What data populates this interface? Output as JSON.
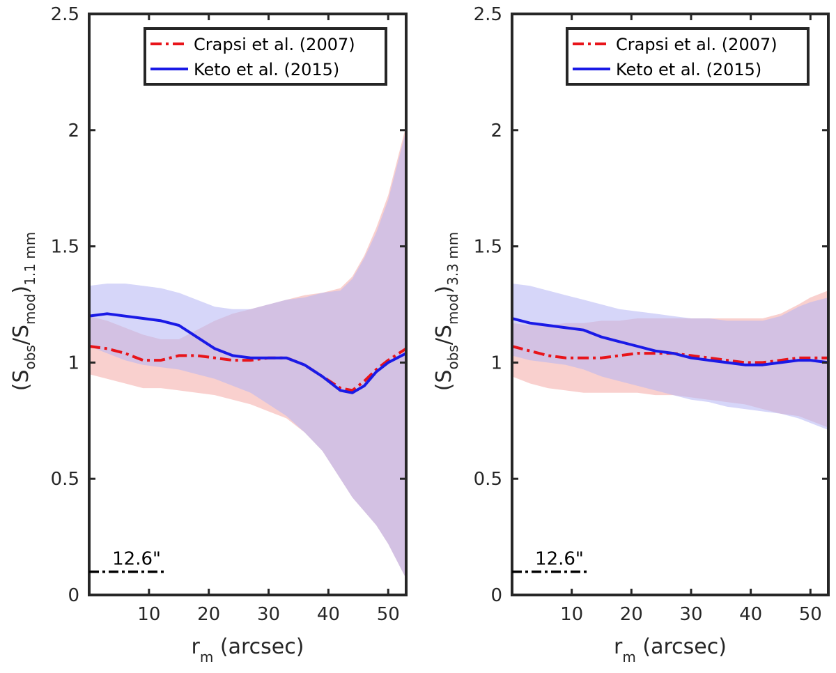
{
  "chart_data": [
    {
      "type": "line",
      "panel": "left",
      "xlabel_main": "r",
      "xlabel_sub": "m",
      "xlabel_rest": " (arcsec)",
      "ylabel_open": "(S",
      "ylabel_sub1": "obs",
      "ylabel_slash": "/S",
      "ylabel_sub2": "mod",
      "ylabel_close": ")",
      "ylabel_sub3": "1.1 mm",
      "xlim": [
        0,
        53
      ],
      "ylim": [
        0,
        2.5
      ],
      "xticks": [
        10,
        20,
        30,
        40,
        50
      ],
      "yticks": [
        0,
        0.5,
        1,
        1.5,
        2,
        2.5
      ],
      "ytick_labels": [
        "0",
        "0.5",
        "1",
        "1.5",
        "2",
        "2.5"
      ],
      "legend_position": "top-right",
      "scale_bar": {
        "label": "12.6\"",
        "x_start": 0,
        "x_end": 12.6,
        "y": 0.1
      },
      "series": [
        {
          "name": "Crapsi et al. (2007)",
          "style": "dash-dot",
          "color": "#e8141a",
          "band_color": "#f4a9a5",
          "x": [
            0,
            3,
            6,
            9,
            12,
            15,
            18,
            21,
            24,
            27,
            30,
            33,
            36,
            39,
            42,
            44,
            46,
            48,
            50,
            53
          ],
          "y": [
            1.07,
            1.06,
            1.04,
            1.01,
            1.01,
            1.03,
            1.03,
            1.02,
            1.01,
            1.01,
            1.02,
            1.02,
            0.99,
            0.94,
            0.89,
            0.88,
            0.92,
            0.97,
            1.01,
            1.06
          ],
          "lower": [
            0.95,
            0.93,
            0.91,
            0.89,
            0.89,
            0.88,
            0.87,
            0.86,
            0.84,
            0.82,
            0.79,
            0.76,
            0.7,
            0.62,
            0.5,
            0.42,
            0.36,
            0.3,
            0.22,
            0.07
          ],
          "upper": [
            1.2,
            1.18,
            1.15,
            1.12,
            1.1,
            1.1,
            1.14,
            1.18,
            1.21,
            1.23,
            1.25,
            1.27,
            1.29,
            1.3,
            1.32,
            1.37,
            1.46,
            1.58,
            1.72,
            2.02
          ]
        },
        {
          "name": "Keto et al. (2015)",
          "style": "solid",
          "color": "#1a1ae6",
          "band_color": "#b4b4f4",
          "x": [
            0,
            3,
            6,
            9,
            12,
            15,
            18,
            21,
            24,
            27,
            30,
            33,
            36,
            39,
            42,
            44,
            46,
            48,
            50,
            53
          ],
          "y": [
            1.2,
            1.21,
            1.2,
            1.19,
            1.18,
            1.16,
            1.11,
            1.06,
            1.03,
            1.02,
            1.02,
            1.02,
            0.99,
            0.94,
            0.88,
            0.87,
            0.9,
            0.96,
            1.0,
            1.04
          ],
          "lower": [
            1.07,
            1.04,
            1.01,
            0.99,
            0.98,
            0.97,
            0.95,
            0.93,
            0.9,
            0.87,
            0.82,
            0.77,
            0.7,
            0.62,
            0.5,
            0.42,
            0.36,
            0.3,
            0.22,
            0.07
          ],
          "upper": [
            1.33,
            1.34,
            1.34,
            1.33,
            1.32,
            1.3,
            1.27,
            1.24,
            1.23,
            1.23,
            1.25,
            1.27,
            1.28,
            1.3,
            1.31,
            1.36,
            1.45,
            1.56,
            1.7,
            2.0
          ]
        }
      ]
    },
    {
      "type": "line",
      "panel": "right",
      "xlabel_main": "r",
      "xlabel_sub": "m",
      "xlabel_rest": " (arcsec)",
      "ylabel_open": "(S",
      "ylabel_sub1": "obs",
      "ylabel_slash": "/S",
      "ylabel_sub2": "mod",
      "ylabel_close": ")",
      "ylabel_sub3": "3.3 mm",
      "xlim": [
        0,
        53
      ],
      "ylim": [
        0,
        2.5
      ],
      "xticks": [
        10,
        20,
        30,
        40,
        50
      ],
      "yticks": [
        0,
        0.5,
        1,
        1.5,
        2,
        2.5
      ],
      "ytick_labels": [
        "0",
        "0.5",
        "1",
        "1.5",
        "2",
        "2.5"
      ],
      "legend_position": "top-right",
      "scale_bar": {
        "label": "12.6\"",
        "x_start": 0,
        "x_end": 12.6,
        "y": 0.1
      },
      "series": [
        {
          "name": "Crapsi et al. (2007)",
          "style": "dash-dot",
          "color": "#e8141a",
          "band_color": "#f4a9a5",
          "x": [
            0,
            3,
            6,
            9,
            12,
            15,
            18,
            21,
            24,
            27,
            30,
            33,
            36,
            39,
            42,
            45,
            48,
            50,
            53
          ],
          "y": [
            1.07,
            1.05,
            1.03,
            1.02,
            1.02,
            1.02,
            1.03,
            1.04,
            1.04,
            1.04,
            1.03,
            1.02,
            1.01,
            1.0,
            1.0,
            1.01,
            1.02,
            1.02,
            1.02
          ],
          "lower": [
            0.94,
            0.91,
            0.89,
            0.88,
            0.87,
            0.87,
            0.87,
            0.87,
            0.86,
            0.86,
            0.85,
            0.84,
            0.83,
            0.82,
            0.8,
            0.78,
            0.77,
            0.75,
            0.72
          ],
          "upper": [
            1.17,
            1.16,
            1.16,
            1.17,
            1.17,
            1.18,
            1.18,
            1.19,
            1.19,
            1.19,
            1.19,
            1.19,
            1.19,
            1.19,
            1.19,
            1.21,
            1.25,
            1.28,
            1.31
          ]
        },
        {
          "name": "Keto et al. (2015)",
          "style": "solid",
          "color": "#1a1ae6",
          "band_color": "#b4b4f4",
          "x": [
            0,
            3,
            6,
            9,
            12,
            15,
            18,
            21,
            24,
            27,
            30,
            33,
            36,
            39,
            42,
            45,
            48,
            50,
            53
          ],
          "y": [
            1.19,
            1.17,
            1.16,
            1.15,
            1.14,
            1.11,
            1.09,
            1.07,
            1.05,
            1.04,
            1.02,
            1.01,
            1.0,
            0.99,
            0.99,
            1.0,
            1.01,
            1.01,
            1.0
          ],
          "lower": [
            1.03,
            1.01,
            1.0,
            0.99,
            0.97,
            0.94,
            0.92,
            0.9,
            0.88,
            0.86,
            0.84,
            0.83,
            0.81,
            0.8,
            0.79,
            0.78,
            0.76,
            0.74,
            0.71
          ],
          "upper": [
            1.34,
            1.33,
            1.31,
            1.29,
            1.27,
            1.25,
            1.23,
            1.22,
            1.21,
            1.2,
            1.19,
            1.19,
            1.18,
            1.18,
            1.18,
            1.2,
            1.24,
            1.26,
            1.28
          ]
        }
      ]
    }
  ]
}
